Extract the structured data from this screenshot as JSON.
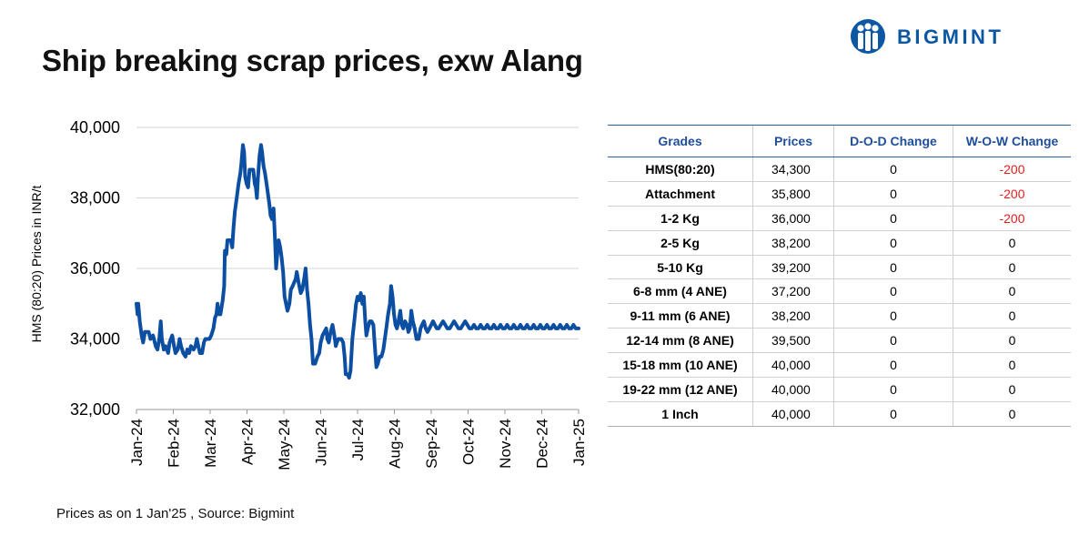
{
  "title": "Ship breaking scrap prices, exw Alang",
  "brand": {
    "name": "BIGMINT",
    "color": "#0b57a4",
    "icon": "bigmint-logo-icon"
  },
  "source_note": "Prices as on 1 Jan'25 , Source: Bigmint",
  "chart_data": {
    "type": "line",
    "title": "",
    "ylabel": "HMS (80:20) Prices in INR/t",
    "xlabel": "",
    "ylim": [
      32000,
      40000
    ],
    "y_ticks": [
      "32,000",
      "34,000",
      "36,000",
      "38,000",
      "40,000"
    ],
    "x_ticks": [
      "Jan-24",
      "Feb-24",
      "Mar-24",
      "Apr-24",
      "May-24",
      "Jun-24",
      "Jul-24",
      "Aug-24",
      "Sep-24",
      "Oct-24",
      "Nov-24",
      "Dec-24",
      "Jan-25"
    ],
    "grid": "horizontal",
    "line_color": "#0b4ea2",
    "series": [
      {
        "values": [
          [
            0.0,
            35000
          ],
          [
            0.03,
            34700
          ],
          [
            0.05,
            35000
          ],
          [
            0.09,
            34500
          ],
          [
            0.14,
            34100
          ],
          [
            0.18,
            33900
          ],
          [
            0.23,
            34200
          ],
          [
            0.33,
            34200
          ],
          [
            0.38,
            34000
          ],
          [
            0.45,
            34100
          ],
          [
            0.52,
            33800
          ],
          [
            0.57,
            33700
          ],
          [
            0.62,
            34000
          ],
          [
            0.66,
            34500
          ],
          [
            0.69,
            34000
          ],
          [
            0.74,
            33700
          ],
          [
            0.79,
            33800
          ],
          [
            0.86,
            33600
          ],
          [
            0.9,
            33900
          ],
          [
            0.97,
            34100
          ],
          [
            1.02,
            33800
          ],
          [
            1.06,
            33600
          ],
          [
            1.12,
            33700
          ],
          [
            1.17,
            34000
          ],
          [
            1.21,
            33800
          ],
          [
            1.27,
            33600
          ],
          [
            1.33,
            33500
          ],
          [
            1.38,
            33700
          ],
          [
            1.43,
            33600
          ],
          [
            1.48,
            33800
          ],
          [
            1.55,
            33700
          ],
          [
            1.6,
            33800
          ],
          [
            1.64,
            34000
          ],
          [
            1.68,
            33800
          ],
          [
            1.72,
            33600
          ],
          [
            1.78,
            33600
          ],
          [
            1.83,
            33900
          ],
          [
            1.87,
            34000
          ],
          [
            1.93,
            34000
          ],
          [
            1.98,
            34000
          ],
          [
            2.03,
            34100
          ],
          [
            2.09,
            34300
          ],
          [
            2.13,
            34600
          ],
          [
            2.17,
            34700
          ],
          [
            2.2,
            35000
          ],
          [
            2.24,
            34700
          ],
          [
            2.28,
            34700
          ],
          [
            2.34,
            35100
          ],
          [
            2.38,
            35500
          ],
          [
            2.4,
            36500
          ],
          [
            2.44,
            36400
          ],
          [
            2.47,
            36800
          ],
          [
            2.51,
            36800
          ],
          [
            2.56,
            36800
          ],
          [
            2.6,
            36600
          ],
          [
            2.63,
            37100
          ],
          [
            2.67,
            37600
          ],
          [
            2.72,
            38000
          ],
          [
            2.77,
            38400
          ],
          [
            2.82,
            38700
          ],
          [
            2.85,
            39000
          ],
          [
            2.89,
            39500
          ],
          [
            2.92,
            39300
          ],
          [
            2.95,
            38600
          ],
          [
            2.99,
            38400
          ],
          [
            3.03,
            38300
          ],
          [
            3.07,
            38800
          ],
          [
            3.12,
            38800
          ],
          [
            3.17,
            38800
          ],
          [
            3.21,
            38400
          ],
          [
            3.24,
            38300
          ],
          [
            3.27,
            38000
          ],
          [
            3.3,
            38600
          ],
          [
            3.34,
            39200
          ],
          [
            3.38,
            39500
          ],
          [
            3.41,
            39300
          ],
          [
            3.45,
            38900
          ],
          [
            3.49,
            38700
          ],
          [
            3.53,
            38400
          ],
          [
            3.57,
            38100
          ],
          [
            3.61,
            37800
          ],
          [
            3.64,
            37500
          ],
          [
            3.68,
            37400
          ],
          [
            3.72,
            37700
          ],
          [
            3.76,
            36800
          ],
          [
            3.79,
            36000
          ],
          [
            3.83,
            36500
          ],
          [
            3.86,
            36800
          ],
          [
            3.9,
            36600
          ],
          [
            3.94,
            36300
          ],
          [
            3.98,
            35900
          ],
          [
            4.02,
            35200
          ],
          [
            4.06,
            35000
          ],
          [
            4.1,
            34800
          ],
          [
            4.15,
            35000
          ],
          [
            4.19,
            35400
          ],
          [
            4.24,
            35500
          ],
          [
            4.28,
            35600
          ],
          [
            4.32,
            35700
          ],
          [
            4.35,
            35900
          ],
          [
            4.4,
            35600
          ],
          [
            4.46,
            35300
          ],
          [
            4.5,
            35400
          ],
          [
            4.55,
            35700
          ],
          [
            4.59,
            36000
          ],
          [
            4.63,
            35400
          ],
          [
            4.67,
            35000
          ],
          [
            4.71,
            34400
          ],
          [
            4.75,
            34000
          ],
          [
            4.79,
            33300
          ],
          [
            4.85,
            33300
          ],
          [
            4.91,
            33500
          ],
          [
            4.96,
            33600
          ],
          [
            5.0,
            33900
          ],
          [
            5.05,
            34100
          ],
          [
            5.1,
            34200
          ],
          [
            5.15,
            34300
          ],
          [
            5.18,
            34000
          ],
          [
            5.22,
            33900
          ],
          [
            5.27,
            34200
          ],
          [
            5.32,
            34400
          ],
          [
            5.37,
            34100
          ],
          [
            5.41,
            33800
          ],
          [
            5.44,
            33900
          ],
          [
            5.48,
            34000
          ],
          [
            5.52,
            34000
          ],
          [
            5.56,
            34000
          ],
          [
            5.61,
            33900
          ],
          [
            5.65,
            33500
          ],
          [
            5.68,
            33000
          ],
          [
            5.73,
            33000
          ],
          [
            5.77,
            32900
          ],
          [
            5.81,
            33100
          ],
          [
            5.86,
            34000
          ],
          [
            5.91,
            34500
          ],
          [
            5.96,
            35000
          ],
          [
            6.0,
            35200
          ],
          [
            6.04,
            35100
          ],
          [
            6.09,
            35300
          ],
          [
            6.13,
            35000
          ],
          [
            6.17,
            35200
          ],
          [
            6.21,
            34500
          ],
          [
            6.24,
            34100
          ],
          [
            6.28,
            34300
          ],
          [
            6.33,
            34500
          ],
          [
            6.38,
            34500
          ],
          [
            6.43,
            34400
          ],
          [
            6.47,
            33800
          ],
          [
            6.51,
            33200
          ],
          [
            6.55,
            33300
          ],
          [
            6.6,
            33500
          ],
          [
            6.65,
            33500
          ],
          [
            6.7,
            33700
          ],
          [
            6.74,
            34000
          ],
          [
            6.78,
            34300
          ],
          [
            6.83,
            34700
          ],
          [
            6.88,
            35000
          ],
          [
            6.91,
            35500
          ],
          [
            6.95,
            35200
          ],
          [
            6.99,
            34700
          ],
          [
            7.03,
            34400
          ],
          [
            7.07,
            34300
          ],
          [
            7.11,
            34500
          ],
          [
            7.16,
            34800
          ],
          [
            7.2,
            34400
          ],
          [
            7.24,
            34300
          ],
          [
            7.29,
            34500
          ],
          [
            7.34,
            34400
          ],
          [
            7.38,
            34200
          ],
          [
            7.42,
            34300
          ],
          [
            7.46,
            34800
          ],
          [
            7.5,
            34500
          ],
          [
            7.55,
            34300
          ],
          [
            7.6,
            34000
          ],
          [
            7.66,
            34000
          ],
          [
            7.71,
            34300
          ],
          [
            7.75,
            34400
          ],
          [
            7.8,
            34500
          ],
          [
            7.85,
            34300
          ],
          [
            7.9,
            34200
          ],
          [
            7.95,
            34300
          ],
          [
            8.0,
            34400
          ],
          [
            8.05,
            34500
          ],
          [
            8.1,
            34400
          ],
          [
            8.15,
            34300
          ],
          [
            8.2,
            34300
          ],
          [
            8.26,
            34400
          ],
          [
            8.32,
            34500
          ],
          [
            8.38,
            34400
          ],
          [
            8.44,
            34300
          ],
          [
            8.5,
            34300
          ],
          [
            8.56,
            34400
          ],
          [
            8.62,
            34500
          ],
          [
            8.68,
            34400
          ],
          [
            8.74,
            34300
          ],
          [
            8.8,
            34300
          ],
          [
            8.86,
            34400
          ],
          [
            8.92,
            34500
          ],
          [
            8.98,
            34400
          ],
          [
            9.04,
            34300
          ],
          [
            9.1,
            34300
          ],
          [
            9.16,
            34400
          ],
          [
            9.22,
            34300
          ],
          [
            9.28,
            34300
          ],
          [
            9.34,
            34400
          ],
          [
            9.4,
            34300
          ],
          [
            9.46,
            34300
          ],
          [
            9.52,
            34400
          ],
          [
            9.58,
            34300
          ],
          [
            9.64,
            34300
          ],
          [
            9.7,
            34400
          ],
          [
            9.76,
            34300
          ],
          [
            9.82,
            34300
          ],
          [
            9.88,
            34400
          ],
          [
            9.94,
            34300
          ],
          [
            10.0,
            34300
          ],
          [
            10.06,
            34400
          ],
          [
            10.12,
            34300
          ],
          [
            10.18,
            34300
          ],
          [
            10.24,
            34400
          ],
          [
            10.3,
            34300
          ],
          [
            10.36,
            34300
          ],
          [
            10.42,
            34400
          ],
          [
            10.48,
            34300
          ],
          [
            10.54,
            34300
          ],
          [
            10.6,
            34400
          ],
          [
            10.66,
            34300
          ],
          [
            10.72,
            34300
          ],
          [
            10.78,
            34400
          ],
          [
            10.84,
            34300
          ],
          [
            10.9,
            34300
          ],
          [
            10.96,
            34400
          ],
          [
            11.02,
            34300
          ],
          [
            11.08,
            34300
          ],
          [
            11.14,
            34400
          ],
          [
            11.2,
            34300
          ],
          [
            11.26,
            34300
          ],
          [
            11.32,
            34400
          ],
          [
            11.38,
            34300
          ],
          [
            11.44,
            34300
          ],
          [
            11.5,
            34400
          ],
          [
            11.56,
            34300
          ],
          [
            11.62,
            34300
          ],
          [
            11.68,
            34400
          ],
          [
            11.74,
            34300
          ],
          [
            11.8,
            34300
          ],
          [
            11.86,
            34400
          ],
          [
            11.92,
            34300
          ],
          [
            12.0,
            34300
          ]
        ]
      }
    ]
  },
  "table": {
    "headers": [
      "Grades",
      "Prices",
      "D-O-D Change",
      "W-O-W Change"
    ],
    "rows": [
      {
        "grade": "HMS(80:20)",
        "price": "34,300",
        "dod": "0",
        "wow": "-200"
      },
      {
        "grade": "Attachment",
        "price": "35,800",
        "dod": "0",
        "wow": "-200"
      },
      {
        "grade": "1-2 Kg",
        "price": "36,000",
        "dod": "0",
        "wow": "-200"
      },
      {
        "grade": "2-5 Kg",
        "price": "38,200",
        "dod": "0",
        "wow": "0"
      },
      {
        "grade": "5-10 Kg",
        "price": "39,200",
        "dod": "0",
        "wow": "0"
      },
      {
        "grade": "6-8 mm (4 ANE)",
        "price": "37,200",
        "dod": "0",
        "wow": "0"
      },
      {
        "grade": "9-11 mm (6 ANE)",
        "price": "38,200",
        "dod": "0",
        "wow": "0"
      },
      {
        "grade": "12-14 mm (8 ANE)",
        "price": "39,500",
        "dod": "0",
        "wow": "0"
      },
      {
        "grade": "15-18 mm (10 ANE)",
        "price": "40,000",
        "dod": "0",
        "wow": "0"
      },
      {
        "grade": "19-22 mm (12 ANE)",
        "price": "40,000",
        "dod": "0",
        "wow": "0"
      },
      {
        "grade": "1 Inch",
        "price": "40,000",
        "dod": "0",
        "wow": "0"
      }
    ],
    "negative_color": "#e02020",
    "header_color": "#1f4e9a"
  }
}
